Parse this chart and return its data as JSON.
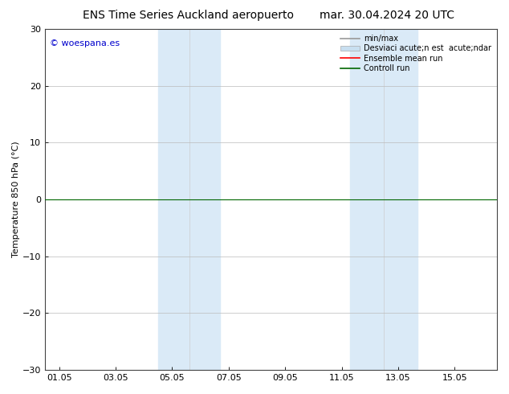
{
  "title_left": "ENS Time Series Auckland aeropuerto",
  "title_right": "mar. 30.04.2024 20 UTC",
  "ylabel": "Temperature 850 hPa (°C)",
  "xtick_labels": [
    "01.05",
    "03.05",
    "05.05",
    "07.05",
    "09.05",
    "11.05",
    "13.05",
    "15.05"
  ],
  "xtick_positions": [
    0,
    2,
    4,
    6,
    8,
    10,
    12,
    14
  ],
  "xlim": [
    -0.5,
    15.5
  ],
  "ylim": [
    -30,
    30
  ],
  "ytick_positions": [
    -30,
    -20,
    -10,
    0,
    10,
    20,
    30
  ],
  "shaded_bands": [
    {
      "x_start": 3.5,
      "x_end": 5.7
    },
    {
      "x_start": 10.3,
      "x_end": 12.7
    }
  ],
  "shaded_color": "#daeaf7",
  "grid_color": "#bbbbbb",
  "ensemble_mean_color": "#ff0000",
  "control_run_color": "#006600",
  "minmax_color": "#999999",
  "std_color": "#c8dff0",
  "background_color": "#ffffff",
  "watermark_text": "© woespana.es",
  "watermark_color": "#0000cc",
  "legend_label_minmax": "min/max",
  "legend_label_std": "Desviaci acute;n est  acute;ndar",
  "legend_label_ensemble": "Ensemble mean run",
  "legend_label_control": "Controll run",
  "title_fontsize": 10,
  "axis_fontsize": 8,
  "tick_fontsize": 8,
  "legend_fontsize": 7
}
